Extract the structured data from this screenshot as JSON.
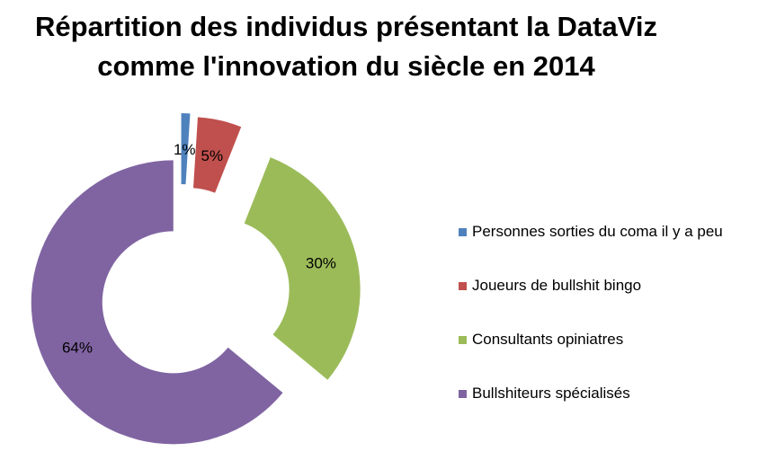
{
  "title": {
    "line1": "Répartition des individus présentant la DataViz",
    "line2": "comme l'innovation du siècle en 2014"
  },
  "chart_data": {
    "type": "pie",
    "variant": "exploded-doughnut",
    "title": "Répartition des individus présentant la DataViz comme l'innovation du siècle en 2014",
    "legend_position": "right",
    "series": [
      {
        "name": "Personnes sorties du coma il y a peu",
        "value": 1,
        "label": "1%",
        "color": "#4f81bd"
      },
      {
        "name": "Joueurs de bullshit bingo",
        "value": 5,
        "label": "5%",
        "color": "#c0504d"
      },
      {
        "name": "Consultants opiniatres",
        "value": 30,
        "label": "30%",
        "color": "#9bbb59"
      },
      {
        "name": "Bullshiteurs spécialisés",
        "value": 64,
        "label": "64%",
        "color": "#8064a2"
      }
    ]
  }
}
